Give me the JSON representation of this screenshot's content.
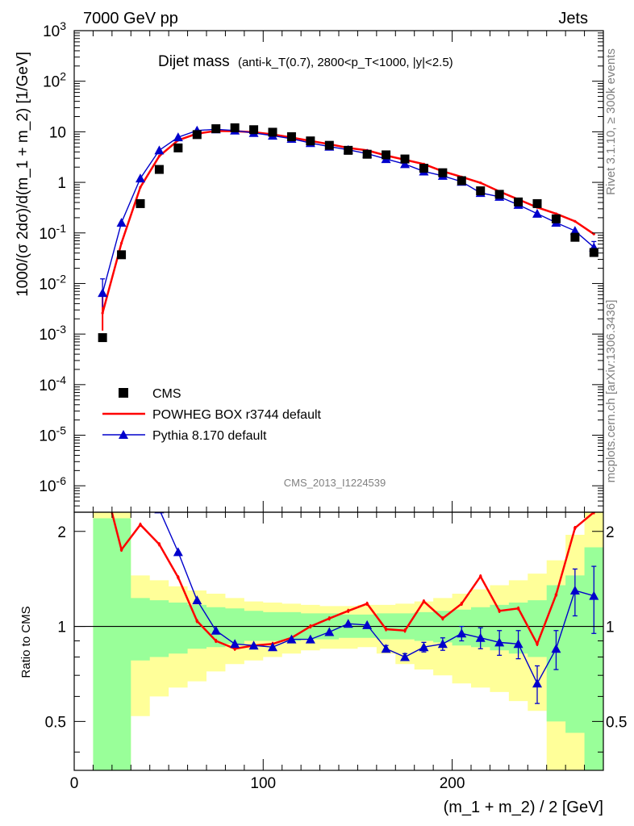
{
  "header": {
    "left": "7000 GeV pp",
    "right": "Jets"
  },
  "side_labels": {
    "rivet": "Rivet 3.1.10, ≥ 300k events",
    "mcplots": "mcplots.cern.ch [arXiv:1306.3436]"
  },
  "watermark": "CMS_2013_I1224539",
  "chart_data": {
    "type": "line",
    "title": "Dijet mass",
    "title_detail": "(anti-k_T(0.7), 2800<p_T<1000, |y|<2.5)",
    "xlabel": "(m_1 + m_2) / 2 [GeV]",
    "ylabel": "1000/(σ 2dσ)/d(m_1 + m_2) [1/GeV]",
    "ratio_ylabel": "Ratio to CMS",
    "xlim": [
      0,
      280
    ],
    "ylim": [
      3e-07,
      1000
    ],
    "yscale": "log",
    "ratio_ylim": [
      0.35,
      2.3
    ],
    "ratio_yscale": "log",
    "x_ticks": [
      "0",
      "100",
      "200"
    ],
    "y_ticks": [
      "10^-6",
      "10^-5",
      "10^-4",
      "10^-3",
      "10^-2",
      "10^-1",
      "1",
      "10",
      "10^2",
      "10^3"
    ],
    "ratio_ticks": [
      "0.5",
      "1",
      "2"
    ],
    "legend_position": "bottom-left",
    "x": [
      15,
      25,
      35,
      45,
      55,
      65,
      75,
      85,
      95,
      105,
      115,
      125,
      135,
      145,
      155,
      165,
      175,
      185,
      195,
      205,
      215,
      225,
      235,
      245,
      255,
      265,
      275
    ],
    "series": [
      {
        "name": "CMS",
        "style": "data",
        "color": "#000000",
        "values": [
          0.00085,
          0.037,
          0.38,
          1.8,
          4.8,
          8.8,
          11.5,
          12.0,
          11.0,
          9.8,
          8.0,
          6.6,
          5.4,
          4.3,
          3.6,
          3.5,
          2.9,
          1.9,
          1.55,
          1.08,
          0.68,
          0.58,
          0.41,
          0.38,
          0.19,
          0.082,
          0.041
        ]
      },
      {
        "name": "POWHEG BOX r3744 default",
        "style": "line",
        "color": "#ff0000",
        "values": [
          0.0026,
          0.063,
          0.8,
          3.3,
          6.8,
          9.2,
          10.4,
          10.3,
          9.8,
          8.9,
          7.7,
          6.6,
          5.7,
          4.8,
          4.3,
          3.4,
          2.8,
          2.3,
          1.66,
          1.28,
          0.98,
          0.66,
          0.46,
          0.32,
          0.24,
          0.17,
          0.095
        ]
      },
      {
        "name": "Pythia 8.170 default",
        "style": "marker-line",
        "color": "#0000cc",
        "values": [
          0.0065,
          0.16,
          1.2,
          4.3,
          7.8,
          10.6,
          11.2,
          10.6,
          9.5,
          8.4,
          7.3,
          6.0,
          5.1,
          4.4,
          3.7,
          2.9,
          2.3,
          1.65,
          1.35,
          1.03,
          0.62,
          0.52,
          0.36,
          0.24,
          0.16,
          0.11,
          0.052
        ]
      }
    ],
    "ratio": {
      "powheg": [
        3.0,
        1.75,
        2.1,
        1.82,
        1.43,
        1.04,
        0.9,
        0.85,
        0.87,
        0.88,
        0.92,
        1.0,
        1.06,
        1.12,
        1.18,
        0.98,
        0.97,
        1.2,
        1.06,
        1.18,
        1.44,
        1.12,
        1.14,
        0.88,
        1.26,
        2.05,
        2.3
      ],
      "pythia": [
        7.6,
        4.3,
        3.2,
        2.35,
        1.72,
        1.21,
        0.97,
        0.88,
        0.87,
        0.86,
        0.91,
        0.91,
        0.96,
        1.02,
        1.01,
        0.85,
        0.8,
        0.86,
        0.88,
        0.95,
        0.92,
        0.89,
        0.88,
        0.66,
        0.85,
        1.3,
        1.25
      ],
      "pythia_err": [
        0,
        0,
        0,
        0,
        0,
        0,
        0,
        0,
        0,
        0,
        0,
        0,
        0,
        0,
        0,
        0.02,
        0.02,
        0.03,
        0.04,
        0.05,
        0.07,
        0.08,
        0.09,
        0.09,
        0.12,
        0.22,
        0.3
      ],
      "band_stat_lo": [
        0.35,
        0.35,
        0.78,
        0.8,
        0.82,
        0.85,
        0.86,
        0.88,
        0.9,
        0.9,
        0.9,
        0.91,
        0.91,
        0.92,
        0.92,
        0.91,
        0.91,
        0.9,
        0.89,
        0.87,
        0.86,
        0.84,
        0.82,
        0.8,
        0.5,
        0.46,
        0.35
      ],
      "band_stat_hi": [
        2.2,
        2.2,
        1.23,
        1.21,
        1.19,
        1.17,
        1.15,
        1.14,
        1.12,
        1.11,
        1.11,
        1.1,
        1.1,
        1.09,
        1.09,
        1.1,
        1.1,
        1.11,
        1.12,
        1.13,
        1.15,
        1.17,
        1.19,
        1.21,
        1.35,
        1.45,
        1.78
      ],
      "band_tot_lo": [
        0.35,
        0.35,
        0.52,
        0.6,
        0.64,
        0.67,
        0.72,
        0.76,
        0.78,
        0.8,
        0.82,
        0.84,
        0.85,
        0.85,
        0.86,
        0.82,
        0.76,
        0.73,
        0.7,
        0.66,
        0.64,
        0.62,
        0.58,
        0.54,
        0.35,
        0.35,
        0.35
      ],
      "band_tot_hi": [
        2.3,
        2.3,
        1.45,
        1.4,
        1.34,
        1.3,
        1.27,
        1.23,
        1.2,
        1.19,
        1.18,
        1.17,
        1.16,
        1.16,
        1.17,
        1.17,
        1.18,
        1.2,
        1.23,
        1.27,
        1.31,
        1.35,
        1.4,
        1.47,
        1.62,
        1.95,
        2.3
      ]
    }
  }
}
